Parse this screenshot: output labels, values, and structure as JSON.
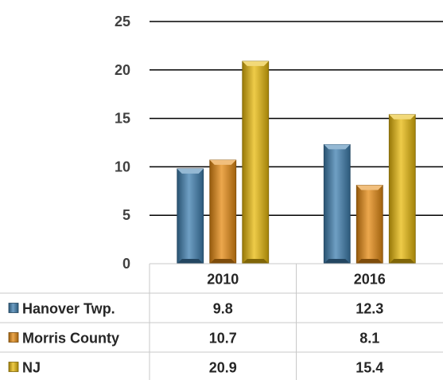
{
  "chart_data": {
    "type": "bar",
    "categories": [
      "2010",
      "2016"
    ],
    "series": [
      {
        "name": "Hanover Twp.",
        "values": [
          9.8,
          12.3
        ],
        "color": "#3f7fb0"
      },
      {
        "name": "Morris County",
        "values": [
          10.7,
          8.1
        ],
        "color": "#e58a12"
      },
      {
        "name": "NJ",
        "values": [
          20.9,
          15.4
        ],
        "color": "#e8b90c"
      }
    ],
    "yticks": [
      0,
      5,
      10,
      15,
      20,
      25
    ],
    "ylim": [
      0,
      25
    ],
    "grid": true,
    "legend": "data-table"
  }
}
